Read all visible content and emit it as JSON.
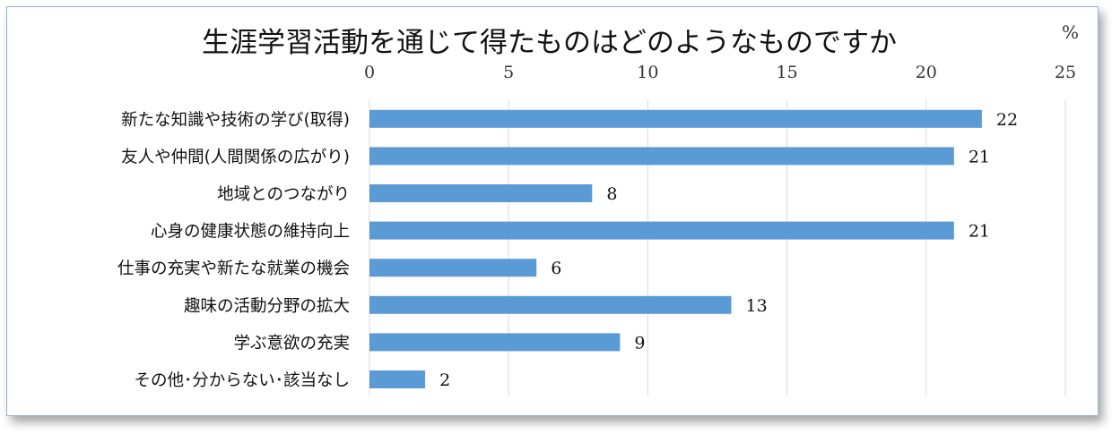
{
  "chart_data": {
    "type": "bar",
    "orientation": "horizontal",
    "title": "生涯学習活動を通じて得たものはどのようなものですか",
    "unit": "%",
    "categories": [
      "新たな知識や技術の学び(取得)",
      "友人や仲間(人間関係の広がり)",
      "地域とのつながり",
      "心身の健康状態の維持向上",
      "仕事の充実や新たな就業の機会",
      "趣味の活動分野の拡大",
      "学ぶ意欲の充実",
      "その他･分からない･該当なし"
    ],
    "values": [
      22,
      21,
      8,
      21,
      6,
      13,
      9,
      2
    ],
    "xlim": [
      0,
      25
    ],
    "xticks": [
      "0",
      "5",
      "10",
      "15",
      "20",
      "25"
    ],
    "axis_position": "top",
    "grid": true,
    "legend": "none",
    "colors": {
      "bar": "#5b9bd5",
      "grid": "#d9d9d9",
      "border": "#8fb3dd"
    }
  }
}
